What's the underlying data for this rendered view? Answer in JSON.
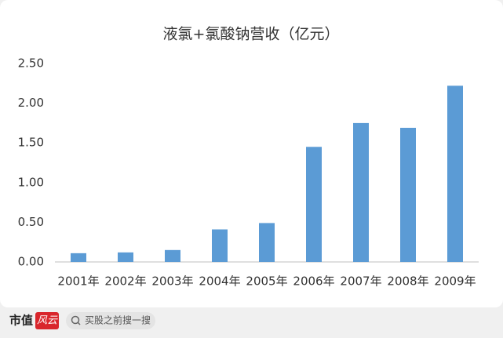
{
  "chart_data": {
    "type": "bar",
    "title": "液氯+氯酸钠营收（亿元）",
    "categories": [
      "2001年",
      "2002年",
      "2003年",
      "2004年",
      "2005年",
      "2006年",
      "2007年",
      "2008年",
      "2009年"
    ],
    "values": [
      0.11,
      0.12,
      0.15,
      0.41,
      0.49,
      1.45,
      1.75,
      1.69,
      2.22
    ],
    "color": "#5b9bd5",
    "ylim": [
      0,
      2.5
    ],
    "yticks": [
      {
        "value": 0,
        "label": "0.00"
      },
      {
        "value": 0.5,
        "label": "0.50"
      },
      {
        "value": 1,
        "label": "1.00"
      },
      {
        "value": 1.5,
        "label": "1.50"
      },
      {
        "value": 2,
        "label": "2.00"
      },
      {
        "value": 2.5,
        "label": "2.50"
      }
    ],
    "grid": false
  },
  "footer": {
    "brand": "市值",
    "badge": "风云",
    "search": "买股之前搜一搜"
  }
}
